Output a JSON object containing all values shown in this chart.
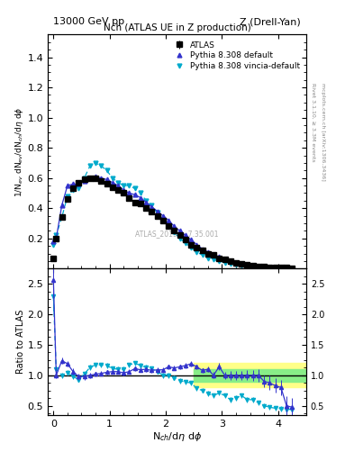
{
  "title_top": "13000 GeV pp",
  "title_top_right": "Z (Drell-Yan)",
  "plot_title": "Nch (ATLAS UE in Z production)",
  "ylabel_main": "1/N$_{ev}$ dN$_{ev}$/dN$_{ch}$/d$\\eta$ d$\\phi$",
  "ylabel_ratio": "Ratio to ATLAS",
  "right_label": "Rivet 3.1.10, ≥ 3.3M events",
  "right_label2": "mcplots.cern.ch [arXiv:1306.3436]",
  "watermark": "ATLAS_2019 ... 7.35.001",
  "atlas_x": [
    0.0,
    0.05,
    0.15,
    0.25,
    0.35,
    0.45,
    0.55,
    0.65,
    0.75,
    0.85,
    0.95,
    1.05,
    1.15,
    1.25,
    1.35,
    1.45,
    1.55,
    1.65,
    1.75,
    1.85,
    1.95,
    2.05,
    2.15,
    2.25,
    2.35,
    2.45,
    2.55,
    2.65,
    2.75,
    2.85,
    2.95,
    3.05,
    3.15,
    3.25,
    3.35,
    3.45,
    3.55,
    3.65,
    3.75,
    3.85,
    3.95,
    4.05,
    4.15,
    4.25
  ],
  "atlas_y": [
    0.07,
    0.2,
    0.34,
    0.46,
    0.53,
    0.57,
    0.59,
    0.6,
    0.6,
    0.58,
    0.56,
    0.54,
    0.52,
    0.5,
    0.47,
    0.44,
    0.43,
    0.4,
    0.38,
    0.35,
    0.32,
    0.28,
    0.25,
    0.22,
    0.19,
    0.16,
    0.14,
    0.12,
    0.1,
    0.09,
    0.07,
    0.06,
    0.05,
    0.04,
    0.03,
    0.025,
    0.02,
    0.015,
    0.012,
    0.01,
    0.008,
    0.006,
    0.005,
    0.004
  ],
  "atlas_yerr": [
    0.01,
    0.01,
    0.015,
    0.015,
    0.015,
    0.015,
    0.015,
    0.015,
    0.015,
    0.015,
    0.015,
    0.015,
    0.015,
    0.015,
    0.015,
    0.015,
    0.015,
    0.015,
    0.015,
    0.015,
    0.015,
    0.015,
    0.015,
    0.015,
    0.015,
    0.015,
    0.01,
    0.01,
    0.01,
    0.01,
    0.008,
    0.007,
    0.006,
    0.005,
    0.004,
    0.003,
    0.003,
    0.002,
    0.002,
    0.002,
    0.002,
    0.002,
    0.002,
    0.002
  ],
  "py_def_x": [
    0.0,
    0.05,
    0.15,
    0.25,
    0.35,
    0.45,
    0.55,
    0.65,
    0.75,
    0.85,
    0.95,
    1.05,
    1.15,
    1.25,
    1.35,
    1.45,
    1.55,
    1.65,
    1.75,
    1.85,
    1.95,
    2.05,
    2.15,
    2.25,
    2.35,
    2.45,
    2.55,
    2.65,
    2.75,
    2.85,
    2.95,
    3.05,
    3.15,
    3.25,
    3.35,
    3.45,
    3.55,
    3.65,
    3.75,
    3.85,
    3.95,
    4.05,
    4.15,
    4.25
  ],
  "py_def_y": [
    0.18,
    0.2,
    0.42,
    0.55,
    0.56,
    0.56,
    0.58,
    0.6,
    0.61,
    0.6,
    0.59,
    0.57,
    0.55,
    0.52,
    0.5,
    0.49,
    0.47,
    0.44,
    0.41,
    0.38,
    0.35,
    0.32,
    0.28,
    0.25,
    0.22,
    0.19,
    0.16,
    0.13,
    0.11,
    0.09,
    0.08,
    0.06,
    0.05,
    0.04,
    0.03,
    0.025,
    0.02,
    0.015,
    0.012,
    0.009,
    0.007,
    0.005,
    0.004,
    0.003
  ],
  "py_vinc_x": [
    0.0,
    0.05,
    0.15,
    0.25,
    0.35,
    0.45,
    0.55,
    0.65,
    0.75,
    0.85,
    0.95,
    1.05,
    1.15,
    1.25,
    1.35,
    1.45,
    1.55,
    1.65,
    1.75,
    1.85,
    1.95,
    2.05,
    2.15,
    2.25,
    2.35,
    2.45,
    2.55,
    2.65,
    2.75,
    2.85,
    2.95,
    3.05,
    3.15,
    3.25,
    3.35,
    3.45,
    3.55,
    3.65,
    3.75,
    3.85,
    3.95,
    4.05,
    4.15,
    4.25
  ],
  "py_vinc_y": [
    0.16,
    0.22,
    0.34,
    0.48,
    0.52,
    0.53,
    0.6,
    0.68,
    0.7,
    0.68,
    0.65,
    0.6,
    0.57,
    0.55,
    0.55,
    0.53,
    0.5,
    0.45,
    0.42,
    0.37,
    0.32,
    0.28,
    0.24,
    0.2,
    0.17,
    0.14,
    0.11,
    0.09,
    0.07,
    0.06,
    0.05,
    0.04,
    0.03,
    0.025,
    0.02,
    0.015,
    0.012,
    0.01,
    0.008,
    0.006,
    0.005,
    0.004,
    0.003,
    0.002
  ],
  "ratio_py_def_x": [
    0.0,
    0.05,
    0.15,
    0.25,
    0.35,
    0.45,
    0.55,
    0.65,
    0.75,
    0.85,
    0.95,
    1.05,
    1.15,
    1.25,
    1.35,
    1.45,
    1.55,
    1.65,
    1.75,
    1.85,
    1.95,
    2.05,
    2.15,
    2.25,
    2.35,
    2.45,
    2.55,
    2.65,
    2.75,
    2.85,
    2.95,
    3.05,
    3.15,
    3.25,
    3.35,
    3.45,
    3.55,
    3.65,
    3.75,
    3.85,
    3.95,
    4.05,
    4.15,
    4.25
  ],
  "ratio_py_def_y": [
    2.57,
    1.0,
    1.24,
    1.19,
    1.06,
    0.98,
    0.98,
    1.0,
    1.02,
    1.03,
    1.05,
    1.06,
    1.06,
    1.04,
    1.06,
    1.11,
    1.09,
    1.1,
    1.08,
    1.09,
    1.09,
    1.14,
    1.12,
    1.14,
    1.16,
    1.19,
    1.14,
    1.08,
    1.1,
    1.0,
    1.14,
    1.0,
    1.0,
    1.0,
    1.0,
    1.0,
    1.0,
    1.0,
    0.9,
    0.875,
    0.83,
    0.8,
    0.5,
    0.475
  ],
  "ratio_py_def_yerr": [
    0.3,
    0.05,
    0.05,
    0.05,
    0.05,
    0.05,
    0.05,
    0.04,
    0.04,
    0.04,
    0.04,
    0.04,
    0.04,
    0.04,
    0.04,
    0.04,
    0.04,
    0.04,
    0.04,
    0.04,
    0.04,
    0.04,
    0.04,
    0.04,
    0.04,
    0.04,
    0.04,
    0.04,
    0.05,
    0.05,
    0.06,
    0.06,
    0.07,
    0.07,
    0.07,
    0.08,
    0.09,
    0.1,
    0.1,
    0.12,
    0.12,
    0.13,
    0.15,
    0.15
  ],
  "ratio_py_vinc_x": [
    0.0,
    0.05,
    0.15,
    0.25,
    0.35,
    0.45,
    0.55,
    0.65,
    0.75,
    0.85,
    0.95,
    1.05,
    1.15,
    1.25,
    1.35,
    1.45,
    1.55,
    1.65,
    1.75,
    1.85,
    1.95,
    2.05,
    2.15,
    2.25,
    2.35,
    2.45,
    2.55,
    2.65,
    2.75,
    2.85,
    2.95,
    3.05,
    3.15,
    3.25,
    3.35,
    3.45,
    3.55,
    3.65,
    3.75,
    3.85,
    3.95,
    4.05,
    4.15,
    4.25
  ],
  "ratio_py_vinc_y": [
    2.29,
    1.1,
    1.0,
    1.04,
    0.98,
    0.93,
    1.02,
    1.13,
    1.17,
    1.17,
    1.16,
    1.11,
    1.1,
    1.1,
    1.17,
    1.2,
    1.16,
    1.13,
    1.11,
    1.06,
    1.0,
    1.0,
    0.96,
    0.91,
    0.89,
    0.875,
    0.786,
    0.75,
    0.7,
    0.667,
    0.71,
    0.667,
    0.6,
    0.625,
    0.667,
    0.6,
    0.6,
    0.55,
    0.5,
    0.475,
    0.46,
    0.45,
    0.44,
    0.44
  ],
  "ratio_py_vinc_yerr": [
    0.25,
    0.06,
    0.04,
    0.04,
    0.04,
    0.04,
    0.04,
    0.04,
    0.04,
    0.04,
    0.04,
    0.04,
    0.04,
    0.04,
    0.04,
    0.04,
    0.04,
    0.04,
    0.04,
    0.04,
    0.04,
    0.04,
    0.04,
    0.04,
    0.04,
    0.04,
    0.04,
    0.04,
    0.04,
    0.04,
    0.04,
    0.04,
    0.04,
    0.04,
    0.04,
    0.04,
    0.04,
    0.04,
    0.04,
    0.04,
    0.04,
    0.04,
    0.04,
    0.04
  ],
  "atlas_color": "#000000",
  "py_def_color": "#3333cc",
  "py_vinc_color": "#00aacc",
  "main_ylim": [
    0.0,
    1.55
  ],
  "ratio_ylim": [
    0.35,
    2.75
  ],
  "xlim": [
    -0.1,
    4.5
  ],
  "main_yticks": [
    0.2,
    0.4,
    0.6,
    0.8,
    1.0,
    1.2,
    1.4
  ],
  "ratio_yticks": [
    0.5,
    1.0,
    1.5,
    2.0,
    2.5
  ]
}
